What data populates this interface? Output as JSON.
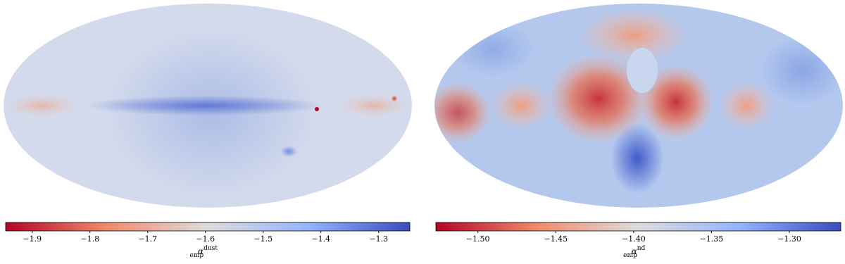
{
  "chart_data": [
    {
      "type": "colorbar",
      "colormap": "coolwarm_r",
      "label": {
        "symbol": "α",
        "superscript": "dust",
        "subscript": "emp"
      },
      "xlim": [
        -1.946,
        -1.246
      ],
      "xticks": [
        {
          "value": -1.9,
          "label": "−1.9"
        },
        {
          "value": -1.8,
          "label": "−1.8"
        },
        {
          "value": -1.7,
          "label": "−1.7"
        },
        {
          "value": -1.6,
          "label": "−1.6"
        },
        {
          "value": -1.5,
          "label": "−1.5"
        },
        {
          "value": -1.4,
          "label": "−1.4"
        },
        {
          "value": -1.3,
          "label": "−1.3"
        }
      ]
    },
    {
      "type": "colorbar",
      "colormap": "coolwarm_r",
      "label": {
        "symbol": "α",
        "superscript": "nd",
        "subscript": "emp"
      },
      "xlim": [
        -1.527,
        -1.267
      ],
      "xticks": [
        {
          "value": -1.5,
          "label": "−1.50"
        },
        {
          "value": -1.45,
          "label": "−1.45"
        },
        {
          "value": -1.4,
          "label": "−1.40"
        },
        {
          "value": -1.35,
          "label": "−1.35"
        },
        {
          "value": -1.3,
          "label": "−1.30"
        }
      ]
    }
  ]
}
